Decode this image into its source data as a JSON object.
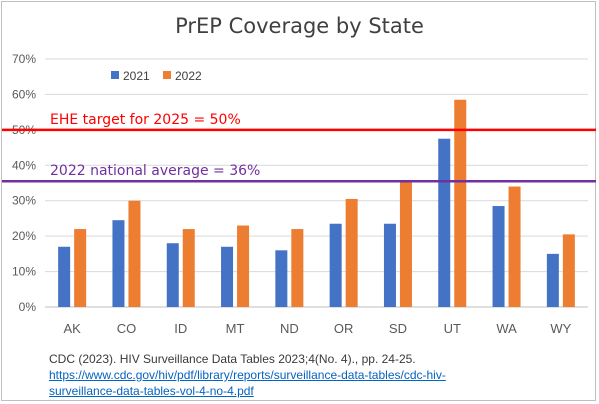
{
  "chart_data": {
    "type": "bar",
    "title": "PrEP Coverage by State",
    "categories": [
      "AK",
      "CO",
      "ID",
      "MT",
      "ND",
      "OR",
      "SD",
      "UT",
      "WA",
      "WY"
    ],
    "series": [
      {
        "name": "2021",
        "color": "#4472c4",
        "values": [
          17,
          24.5,
          18,
          17,
          16,
          23.5,
          23.5,
          47.5,
          28.5,
          15
        ]
      },
      {
        "name": "2022",
        "color": "#ed7d31",
        "values": [
          22,
          30,
          22,
          23,
          22,
          30.5,
          35.5,
          58.5,
          34,
          20.5
        ]
      }
    ],
    "ylim": [
      0,
      70
    ],
    "yticks": [
      "0%",
      "10%",
      "20%",
      "30%",
      "40%",
      "50%",
      "60%",
      "70%"
    ],
    "grid": true,
    "legend": "top-left",
    "reference_lines": [
      {
        "value": 50,
        "label": "EHE target for 2025 = 50%",
        "color": "#ff0000"
      },
      {
        "value": 35.5,
        "label": "2022 national average = 36%",
        "color": "#7030a0"
      }
    ]
  },
  "source": {
    "citation": "CDC (2023). HIV Surveillance Data Tables 2023;4(No. 4)., pp. 24-25.",
    "link_line1": "https://www.cdc.gov/hiv/pdf/library/reports/surveillance-data-tables/cdc-hiv-",
    "link_line2": "surveillance-data-tables-vol-4-no-4.pdf"
  }
}
